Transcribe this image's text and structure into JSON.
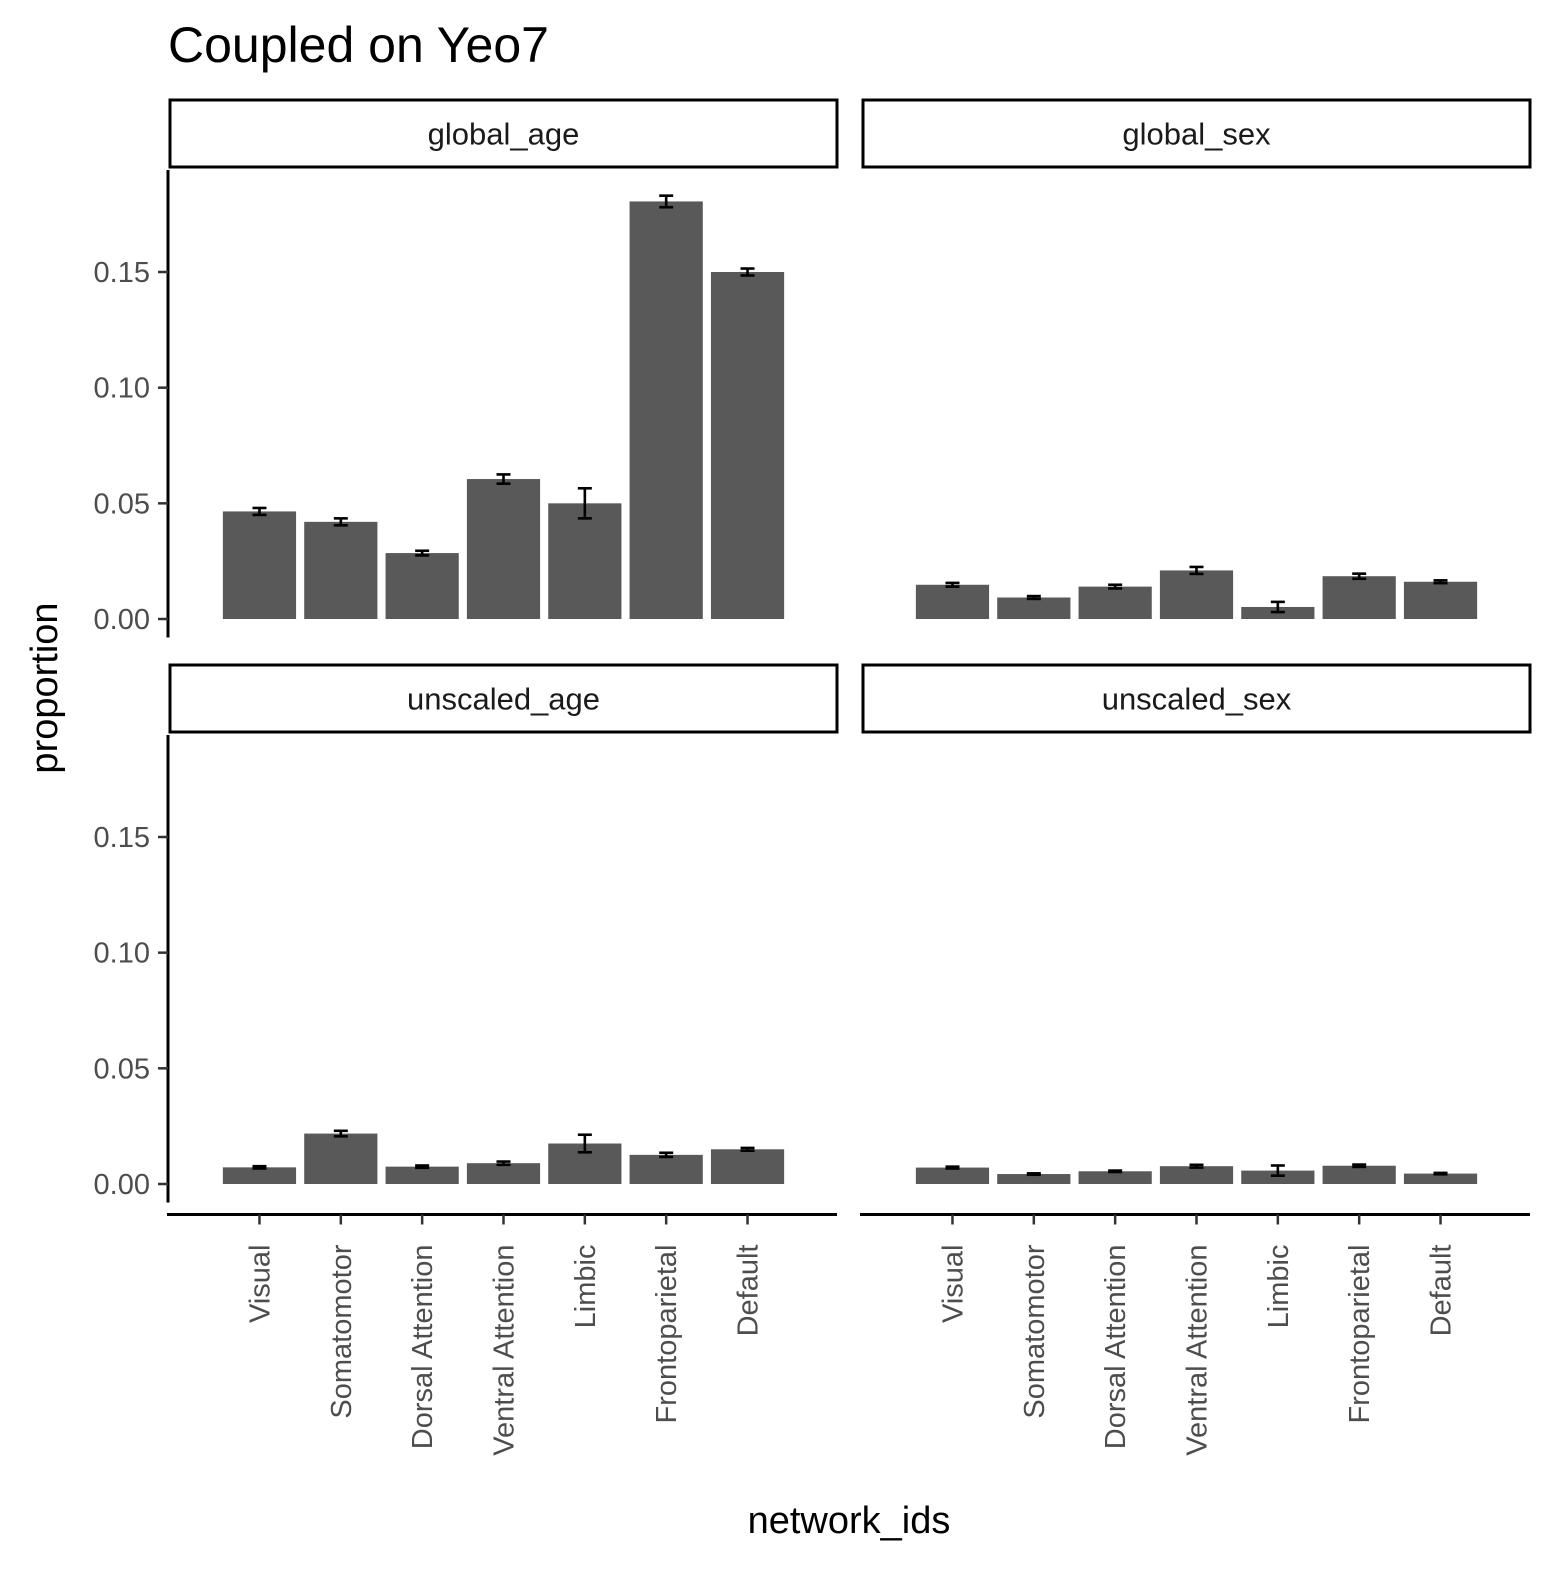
{
  "chart_data": {
    "type": "bar",
    "title": "Coupled on Yeo7",
    "xlabel": "network_ids",
    "ylabel": "proportion",
    "categories": [
      "Visual",
      "Somatomotor",
      "Dorsal Attention",
      "Ventral Attention",
      "Limbic",
      "Frontoparietal",
      "Default"
    ],
    "yticks": [
      "0.00",
      "0.05",
      "0.10",
      "0.15"
    ],
    "ylim": [
      -0.008,
      0.193
    ],
    "bar_color": "#595959",
    "grid": false,
    "legend": "none",
    "panels": [
      {
        "name": "global_age",
        "values": [
          0.0465,
          0.042,
          0.0285,
          0.0605,
          0.05,
          0.1805,
          0.15
        ],
        "error": [
          0.0015,
          0.0015,
          0.001,
          0.002,
          0.0065,
          0.0025,
          0.0015
        ]
      },
      {
        "name": "global_sex",
        "values": [
          0.0148,
          0.0093,
          0.014,
          0.021,
          0.0052,
          0.0185,
          0.0161
        ],
        "error": [
          0.0008,
          0.0006,
          0.0008,
          0.0015,
          0.0022,
          0.0011,
          0.0006
        ]
      },
      {
        "name": "unscaled_age",
        "values": [
          0.0072,
          0.0218,
          0.0075,
          0.009,
          0.0175,
          0.0126,
          0.015
        ],
        "error": [
          0.0005,
          0.0012,
          0.0005,
          0.0007,
          0.0038,
          0.0009,
          0.0006
        ]
      },
      {
        "name": "unscaled_sex",
        "values": [
          0.0071,
          0.0043,
          0.0055,
          0.0077,
          0.0058,
          0.0079,
          0.0045
        ],
        "error": [
          0.0004,
          0.0003,
          0.0003,
          0.0006,
          0.0022,
          0.0005,
          0.0003
        ]
      }
    ]
  }
}
